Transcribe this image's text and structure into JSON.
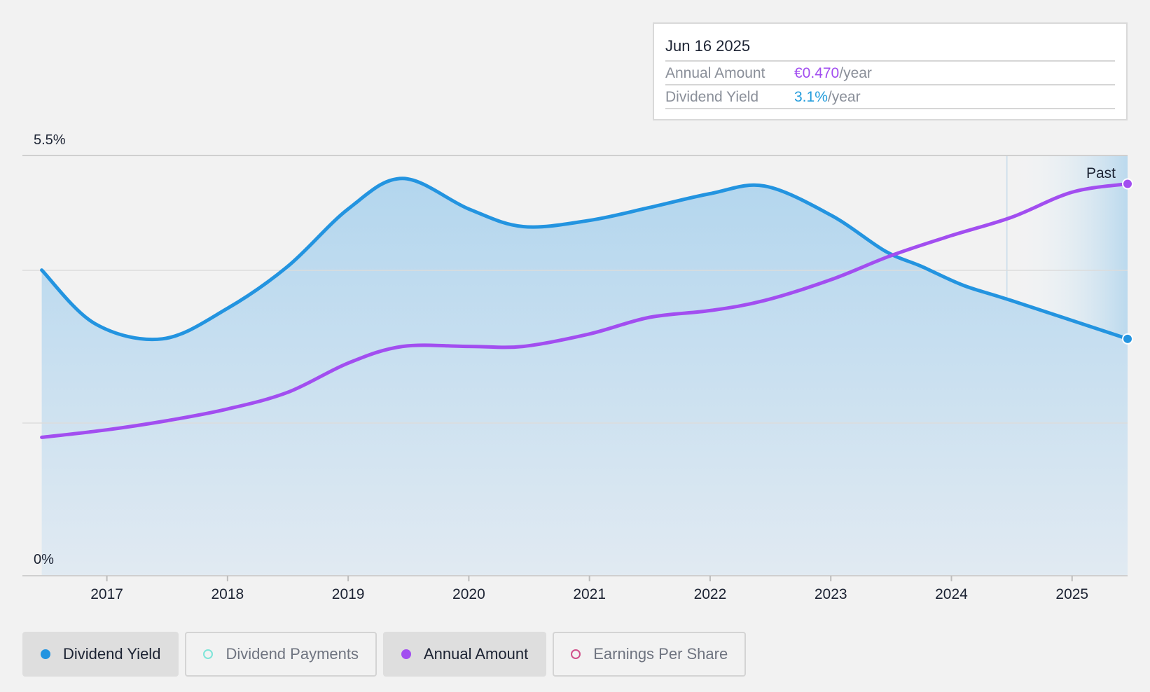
{
  "tooltip": {
    "date": "Jun 16 2025",
    "rows": [
      {
        "label": "Annual Amount",
        "value": "€0.470",
        "unit": "/year"
      },
      {
        "label": "Dividend Yield",
        "value": "3.1%",
        "unit": "/year"
      }
    ]
  },
  "legend": [
    {
      "label": "Dividend Yield",
      "color": "#2394e0",
      "active": true
    },
    {
      "label": "Dividend Payments",
      "color": "#7fe5d9",
      "active": false
    },
    {
      "label": "Annual Amount",
      "color": "#a24ef0",
      "active": true
    },
    {
      "label": "Earnings Per Share",
      "color": "#d0508a",
      "active": false
    }
  ],
  "chart_data": {
    "type": "area",
    "x_ticks": [
      "2017",
      "2018",
      "2019",
      "2020",
      "2021",
      "2022",
      "2023",
      "2024",
      "2025"
    ],
    "y_labels": {
      "top": "5.5%",
      "bottom": "0%"
    },
    "ylim": [
      0,
      5.5
    ],
    "xlim": [
      2016.3,
      2025.46
    ],
    "past_label": "Past",
    "past_region_start": 2024.46,
    "series": [
      {
        "name": "Dividend Yield",
        "unit": "%",
        "color": "#2394e0",
        "filled": true,
        "points": [
          [
            2016.46,
            4.0
          ],
          [
            2016.9,
            3.3
          ],
          [
            2017.46,
            3.1
          ],
          [
            2018.0,
            3.5
          ],
          [
            2018.5,
            4.05
          ],
          [
            2019.0,
            4.8
          ],
          [
            2019.45,
            5.2
          ],
          [
            2020.0,
            4.8
          ],
          [
            2020.45,
            4.57
          ],
          [
            2021.0,
            4.65
          ],
          [
            2021.5,
            4.82
          ],
          [
            2022.0,
            5.0
          ],
          [
            2022.45,
            5.1
          ],
          [
            2023.0,
            4.72
          ],
          [
            2023.45,
            4.25
          ],
          [
            2023.75,
            4.05
          ],
          [
            2024.1,
            3.8
          ],
          [
            2024.5,
            3.6
          ],
          [
            2025.46,
            3.1
          ]
        ]
      },
      {
        "name": "Annual Amount",
        "unit": "EUR/year",
        "color": "#a24ef0",
        "filled": false,
        "points": [
          [
            2016.46,
            0.166
          ],
          [
            2017.0,
            0.175
          ],
          [
            2017.5,
            0.186
          ],
          [
            2018.0,
            0.2
          ],
          [
            2018.5,
            0.22
          ],
          [
            2019.0,
            0.255
          ],
          [
            2019.45,
            0.275
          ],
          [
            2020.0,
            0.275
          ],
          [
            2020.45,
            0.275
          ],
          [
            2021.0,
            0.29
          ],
          [
            2021.5,
            0.31
          ],
          [
            2022.0,
            0.318
          ],
          [
            2022.45,
            0.33
          ],
          [
            2023.0,
            0.355
          ],
          [
            2023.5,
            0.384
          ],
          [
            2024.0,
            0.408
          ],
          [
            2024.5,
            0.43
          ],
          [
            2025.0,
            0.46
          ],
          [
            2025.46,
            0.47
          ]
        ],
        "display_max": 0.504
      }
    ]
  }
}
